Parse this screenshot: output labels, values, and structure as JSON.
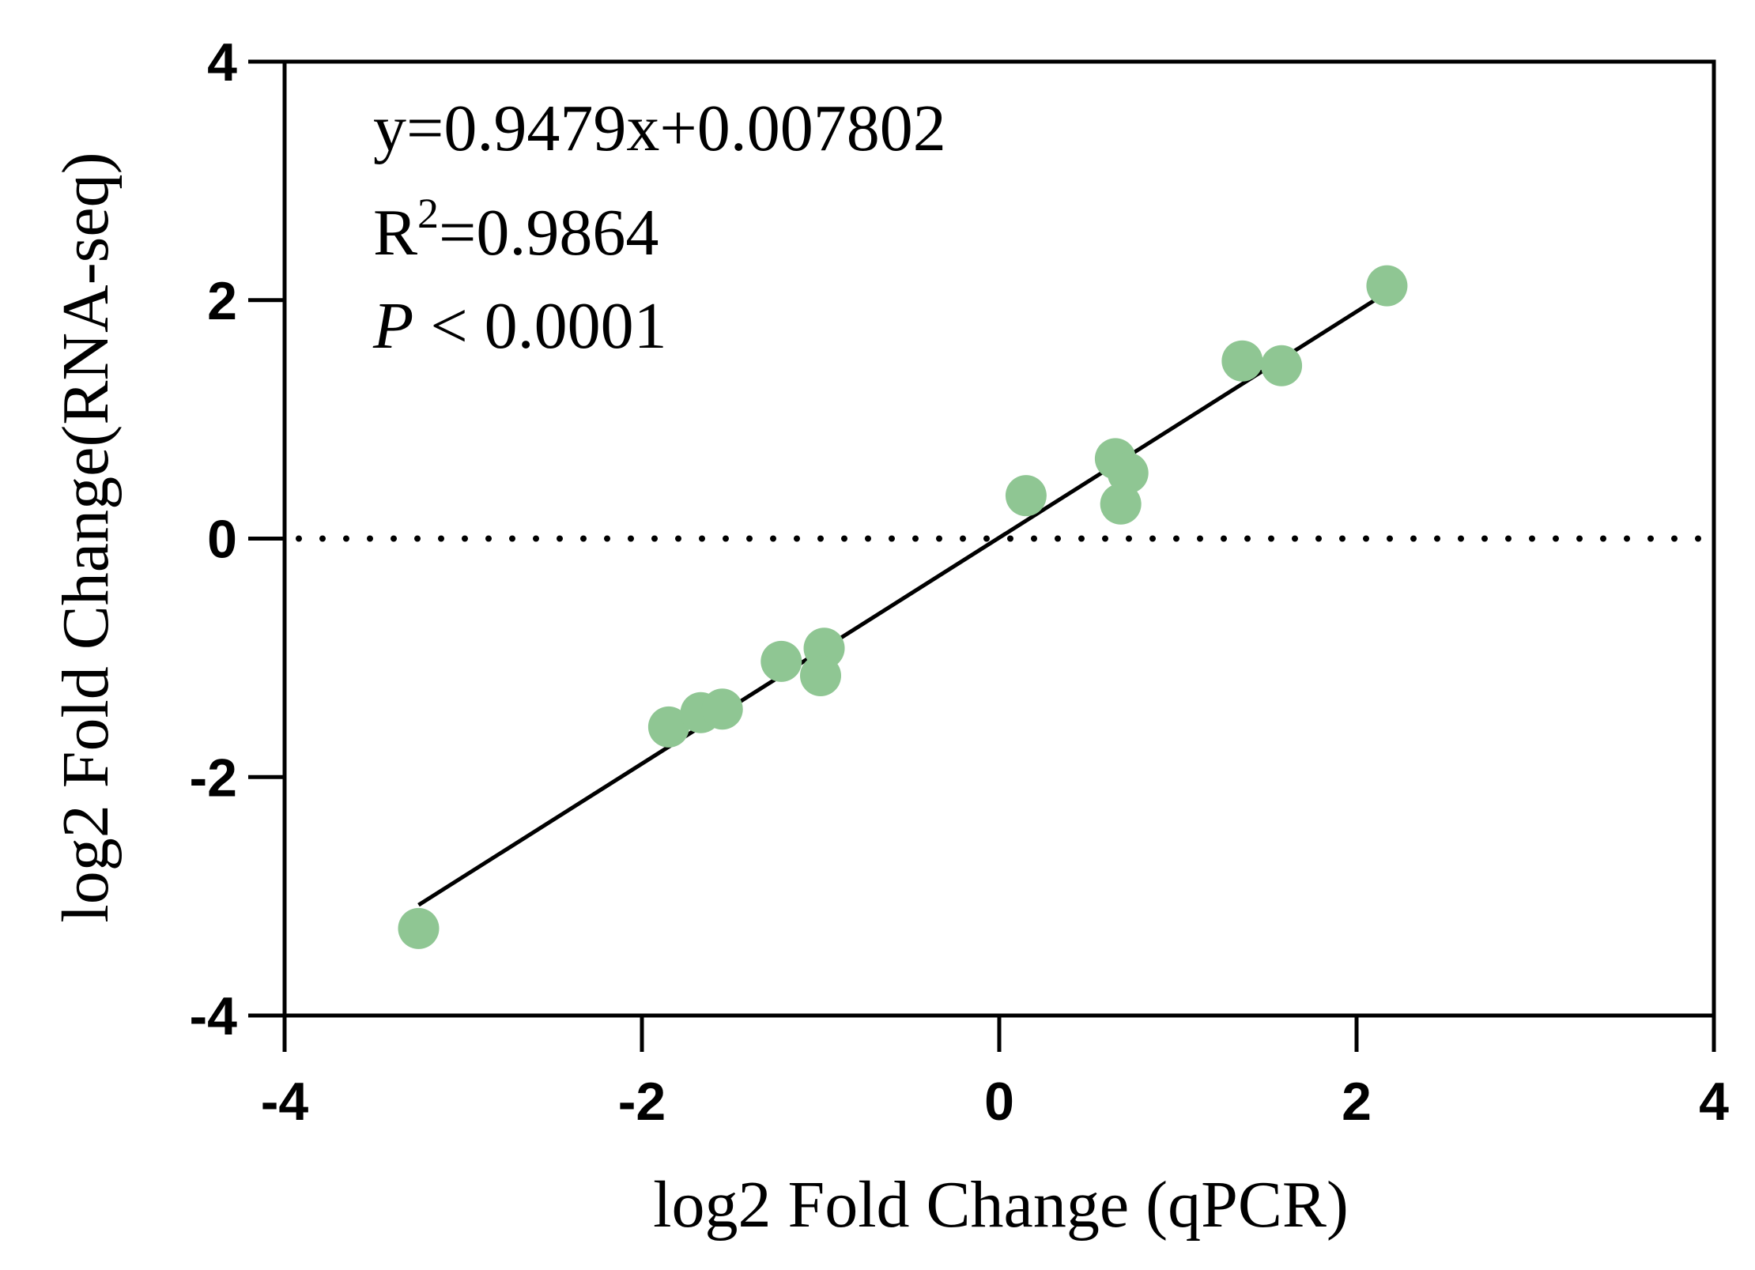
{
  "chart_data": {
    "type": "scatter",
    "xlabel": "log2 Fold Change (qPCR)",
    "ylabel": "log2 Fold Change(RNA-seq)",
    "xlim": [
      -4,
      4
    ],
    "ylim": [
      -4,
      4
    ],
    "x_ticks": [
      -4,
      -2,
      0,
      2,
      4
    ],
    "y_ticks": [
      -4,
      -2,
      0,
      2,
      4
    ],
    "x_tick_labels": [
      "-4",
      "-2",
      "0",
      "2",
      "4"
    ],
    "y_tick_labels": [
      "-4",
      "-2",
      "0",
      "2",
      "4"
    ],
    "grid": false,
    "reference_line": {
      "y": 0,
      "style": "dotted"
    },
    "fit_line": {
      "slope": 0.9479,
      "intercept": 0.007802,
      "x_range": [
        -3.25,
        2.2
      ]
    },
    "point_color": "#8fc693",
    "line_color": "#000000",
    "points": [
      {
        "x": -3.25,
        "y": -3.27
      },
      {
        "x": -1.85,
        "y": -1.58
      },
      {
        "x": -1.67,
        "y": -1.46
      },
      {
        "x": -1.55,
        "y": -1.43
      },
      {
        "x": -1.22,
        "y": -1.03
      },
      {
        "x": -0.98,
        "y": -0.92
      },
      {
        "x": -1.0,
        "y": -1.15
      },
      {
        "x": 0.15,
        "y": 0.36
      },
      {
        "x": 0.65,
        "y": 0.67
      },
      {
        "x": 0.72,
        "y": 0.55
      },
      {
        "x": 0.68,
        "y": 0.29
      },
      {
        "x": 1.36,
        "y": 1.49
      },
      {
        "x": 1.58,
        "y": 1.45
      },
      {
        "x": 2.17,
        "y": 2.12
      }
    ],
    "annotations": {
      "equation": "y=0.9479x+0.007802",
      "r2_prefix": "R",
      "r2_sup": "2",
      "r2_value": "=0.9864",
      "p_symbol": "P",
      "p_value": " < 0.0001"
    }
  }
}
